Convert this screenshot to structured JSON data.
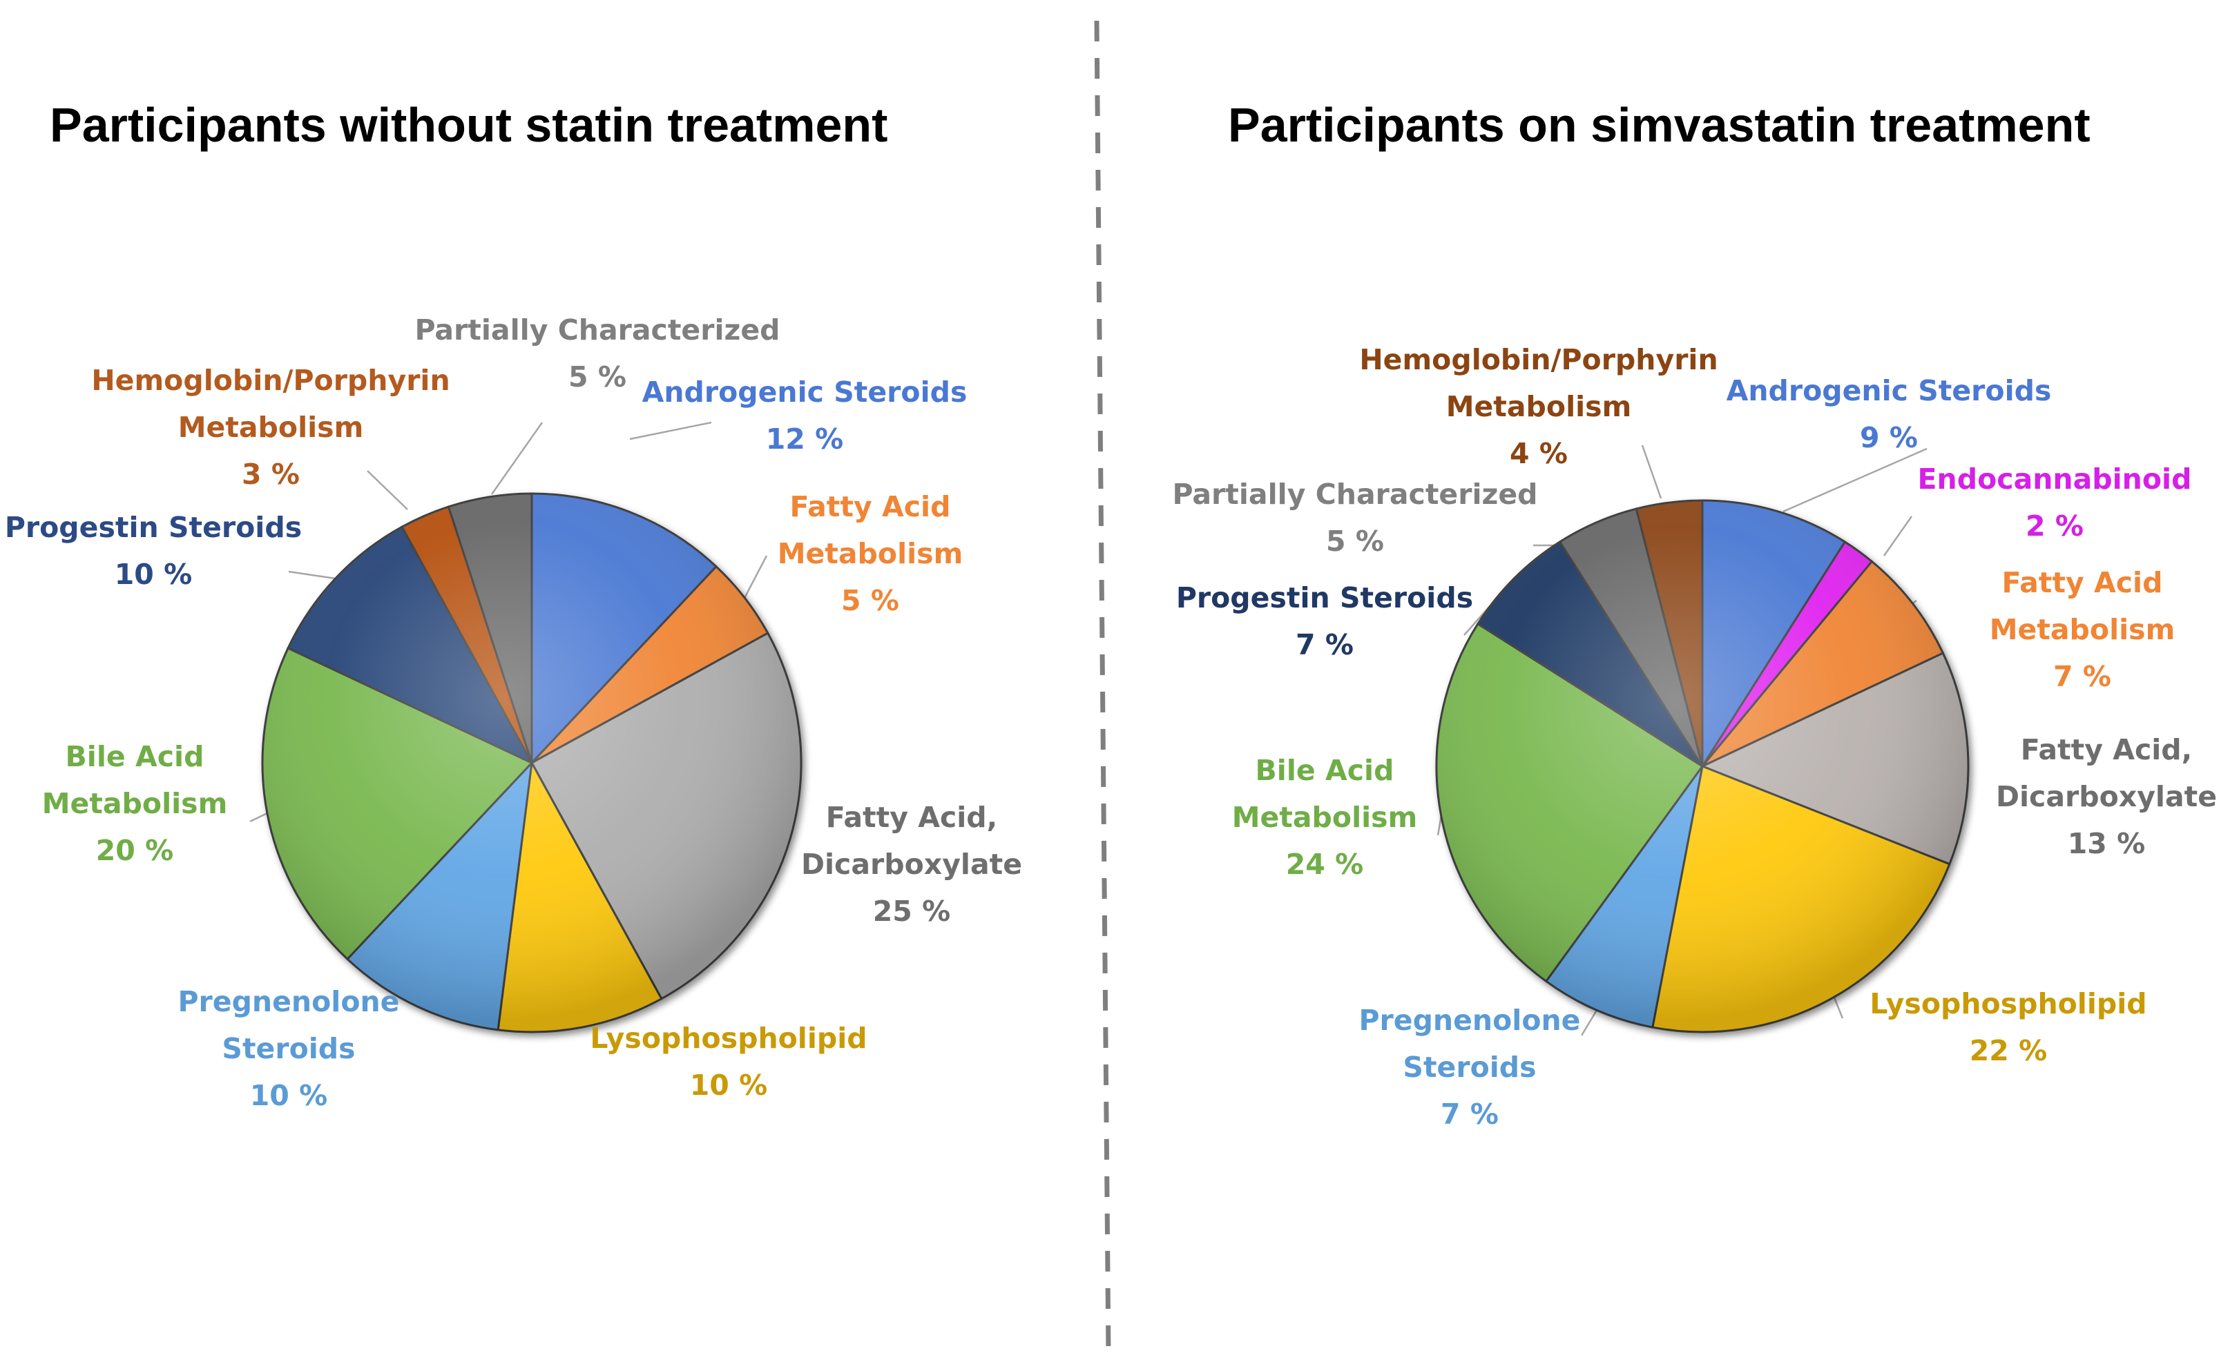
{
  "chart_data": [
    {
      "type": "pie",
      "title": "Participants without statin treatment",
      "slices": [
        {
          "key": "androgenic",
          "label_lines": [
            "Androgenic Steroids"
          ],
          "value": 12,
          "value_text": "12 %",
          "color": "#4A78D3",
          "label_color": "#4A78D3"
        },
        {
          "key": "fatty_acid_metabolism",
          "label_lines": [
            "Fatty Acid",
            "Metabolism"
          ],
          "value": 5,
          "value_text": "5 %",
          "color": "#F08535",
          "label_color": "#F08535"
        },
        {
          "key": "fatty_acid_dicarboxylate",
          "label_lines": [
            "Fatty Acid,",
            "Dicarboxylate"
          ],
          "value": 25,
          "value_text": "25 %",
          "color": "#AEAEAE",
          "label_color": "#6E6E6E"
        },
        {
          "key": "lysophospholipid",
          "label_lines": [
            "Lysophospholipid"
          ],
          "value": 10,
          "value_text": "10 %",
          "color": "#FFC90A",
          "label_color": "#C99A06"
        },
        {
          "key": "pregnenolone",
          "label_lines": [
            "Pregnenolone",
            "Steroids"
          ],
          "value": 10,
          "value_text": "10 %",
          "color": "#62A7E6",
          "label_color": "#5B9BD5"
        },
        {
          "key": "bile_acid",
          "label_lines": [
            "Bile Acid",
            "Metabolism"
          ],
          "value": 20,
          "value_text": "20 %",
          "color": "#79B84F",
          "label_color": "#70AD47"
        },
        {
          "key": "progestin",
          "label_lines": [
            "Progestin Steroids"
          ],
          "value": 10,
          "value_text": "10 %",
          "color": "#264478",
          "label_color": "#2C4A85"
        },
        {
          "key": "hemoglobin",
          "label_lines": [
            "Hemoglobin/Porphyrin",
            "Metabolism"
          ],
          "value": 3,
          "value_text": "3 %",
          "color": "#B5500F",
          "label_color": "#B35A1F"
        },
        {
          "key": "partially_characterized",
          "label_lines": [
            "Partially  Characterized"
          ],
          "value": 5,
          "value_text": "5 %",
          "color": "#666666",
          "label_color": "#7F7F7F"
        }
      ]
    },
    {
      "type": "pie",
      "title": "Participants on simvastatin treatment",
      "slices": [
        {
          "key": "androgenic",
          "label_lines": [
            "Androgenic Steroids"
          ],
          "value": 9,
          "value_text": "9 %",
          "color": "#4A78D3",
          "label_color": "#4A78D3"
        },
        {
          "key": "endocannabinoid",
          "label_lines": [
            "Endocannabinoid"
          ],
          "value": 2,
          "value_text": "2 %",
          "color": "#E020F0",
          "label_color": "#D61FE8"
        },
        {
          "key": "fatty_acid_metabolism",
          "label_lines": [
            "Fatty Acid",
            "Metabolism"
          ],
          "value": 7,
          "value_text": "7 %",
          "color": "#F08535",
          "label_color": "#F08535"
        },
        {
          "key": "fatty_acid_dicarboxylate",
          "label_lines": [
            "Fatty Acid,",
            "Dicarboxylate"
          ],
          "value": 13,
          "value_text": "13 %",
          "color": "#B9B2AF",
          "label_color": "#6E6E6E"
        },
        {
          "key": "lysophospholipid",
          "label_lines": [
            "Lysophospholipid"
          ],
          "value": 22,
          "value_text": "22 %",
          "color": "#FFC90A",
          "label_color": "#C99A06"
        },
        {
          "key": "pregnenolone",
          "label_lines": [
            "Pregnenolone",
            "Steroids"
          ],
          "value": 7,
          "value_text": "7 %",
          "color": "#62A7E6",
          "label_color": "#5B9BD5"
        },
        {
          "key": "bile_acid",
          "label_lines": [
            "Bile Acid",
            "Metabolism"
          ],
          "value": 24,
          "value_text": "24 %",
          "color": "#79B84F",
          "label_color": "#70AD47"
        },
        {
          "key": "progestin",
          "label_lines": [
            "Progestin Steroids"
          ],
          "value": 7,
          "value_text": "7 %",
          "color": "#1F3864",
          "label_color": "#203864"
        },
        {
          "key": "partially_characterized",
          "label_lines": [
            "Partially  Characterized"
          ],
          "value": 5,
          "value_text": "5 %",
          "color": "#666666",
          "label_color": "#7F7F7F"
        },
        {
          "key": "hemoglobin",
          "label_lines": [
            "Hemoglobin/Porphyrin",
            "Metabolism"
          ],
          "value": 4,
          "value_text": "4 %",
          "color": "#8B4513",
          "label_color": "#8B4513"
        }
      ]
    }
  ]
}
